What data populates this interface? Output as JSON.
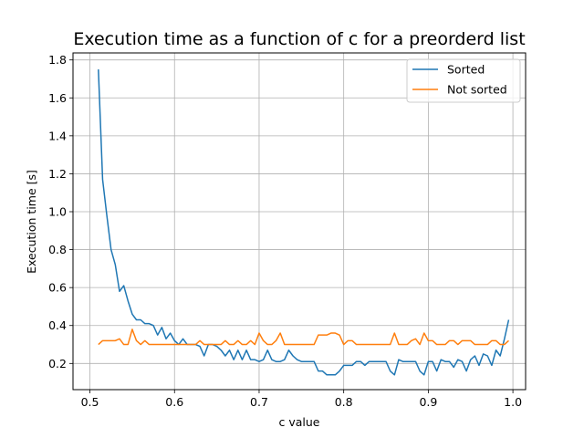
{
  "chart_data": {
    "type": "line",
    "title": "Execution time as a function of c for a preorderd list",
    "xlabel": "c value",
    "ylabel": "Execution time [s]",
    "xlim": [
      0.48,
      1.015
    ],
    "ylim": [
      0.062,
      1.837
    ],
    "xticks": [
      0.5,
      0.6,
      0.7,
      0.8,
      0.9,
      1.0
    ],
    "xtick_labels": [
      "0.5",
      "0.6",
      "0.7",
      "0.8",
      "0.9",
      "1.0"
    ],
    "yticks": [
      0.2,
      0.4,
      0.6,
      0.8,
      1.0,
      1.2,
      1.4,
      1.6,
      1.8
    ],
    "ytick_labels": [
      "0.2",
      "0.4",
      "0.6",
      "0.8",
      "1.0",
      "1.2",
      "1.4",
      "1.6",
      "1.8"
    ],
    "grid": true,
    "legend_position": "top-right",
    "x": [
      0.51,
      0.515,
      0.52,
      0.525,
      0.53,
      0.535,
      0.54,
      0.545,
      0.55,
      0.555,
      0.56,
      0.565,
      0.57,
      0.575,
      0.58,
      0.585,
      0.59,
      0.595,
      0.6,
      0.605,
      0.61,
      0.615,
      0.62,
      0.625,
      0.63,
      0.635,
      0.64,
      0.645,
      0.65,
      0.655,
      0.66,
      0.665,
      0.67,
      0.675,
      0.68,
      0.685,
      0.69,
      0.695,
      0.7,
      0.705,
      0.71,
      0.715,
      0.72,
      0.725,
      0.73,
      0.735,
      0.74,
      0.745,
      0.75,
      0.755,
      0.76,
      0.765,
      0.77,
      0.775,
      0.78,
      0.785,
      0.79,
      0.795,
      0.8,
      0.805,
      0.81,
      0.815,
      0.82,
      0.825,
      0.83,
      0.835,
      0.84,
      0.845,
      0.85,
      0.855,
      0.86,
      0.865,
      0.87,
      0.875,
      0.88,
      0.885,
      0.89,
      0.895,
      0.9,
      0.905,
      0.91,
      0.915,
      0.92,
      0.925,
      0.93,
      0.935,
      0.94,
      0.945,
      0.95,
      0.955,
      0.96,
      0.965,
      0.97,
      0.975,
      0.98,
      0.985,
      0.99,
      0.995
    ],
    "series": [
      {
        "name": "Sorted",
        "color": "#1f77b4",
        "values": [
          1.75,
          1.17,
          0.98,
          0.8,
          0.72,
          0.58,
          0.61,
          0.53,
          0.46,
          0.43,
          0.43,
          0.41,
          0.41,
          0.4,
          0.35,
          0.39,
          0.33,
          0.36,
          0.32,
          0.3,
          0.33,
          0.3,
          0.3,
          0.3,
          0.29,
          0.24,
          0.3,
          0.3,
          0.29,
          0.27,
          0.24,
          0.27,
          0.22,
          0.27,
          0.22,
          0.27,
          0.22,
          0.22,
          0.21,
          0.22,
          0.27,
          0.22,
          0.21,
          0.21,
          0.22,
          0.27,
          0.24,
          0.22,
          0.21,
          0.21,
          0.21,
          0.21,
          0.16,
          0.16,
          0.14,
          0.14,
          0.14,
          0.16,
          0.19,
          0.19,
          0.19,
          0.21,
          0.21,
          0.19,
          0.21,
          0.21,
          0.21,
          0.21,
          0.21,
          0.16,
          0.14,
          0.22,
          0.21,
          0.21,
          0.21,
          0.21,
          0.16,
          0.14,
          0.21,
          0.21,
          0.16,
          0.22,
          0.21,
          0.21,
          0.18,
          0.22,
          0.21,
          0.16,
          0.22,
          0.24,
          0.19,
          0.25,
          0.24,
          0.19,
          0.27,
          0.24,
          0.33,
          0.43
        ]
      },
      {
        "name": "Not sorted",
        "color": "#ff7f0e",
        "values": [
          0.3,
          0.32,
          0.32,
          0.32,
          0.32,
          0.33,
          0.3,
          0.3,
          0.38,
          0.32,
          0.3,
          0.32,
          0.3,
          0.3,
          0.3,
          0.3,
          0.3,
          0.3,
          0.3,
          0.3,
          0.3,
          0.3,
          0.3,
          0.3,
          0.32,
          0.3,
          0.3,
          0.3,
          0.3,
          0.3,
          0.32,
          0.3,
          0.3,
          0.32,
          0.3,
          0.3,
          0.32,
          0.3,
          0.36,
          0.32,
          0.3,
          0.3,
          0.32,
          0.36,
          0.3,
          0.3,
          0.3,
          0.3,
          0.3,
          0.3,
          0.3,
          0.3,
          0.35,
          0.35,
          0.35,
          0.36,
          0.36,
          0.35,
          0.3,
          0.32,
          0.32,
          0.3,
          0.3,
          0.3,
          0.3,
          0.3,
          0.3,
          0.3,
          0.3,
          0.3,
          0.36,
          0.3,
          0.3,
          0.3,
          0.32,
          0.33,
          0.3,
          0.36,
          0.32,
          0.32,
          0.3,
          0.3,
          0.3,
          0.32,
          0.32,
          0.3,
          0.32,
          0.32,
          0.32,
          0.3,
          0.3,
          0.3,
          0.3,
          0.32,
          0.32,
          0.3,
          0.3,
          0.32
        ]
      }
    ]
  }
}
